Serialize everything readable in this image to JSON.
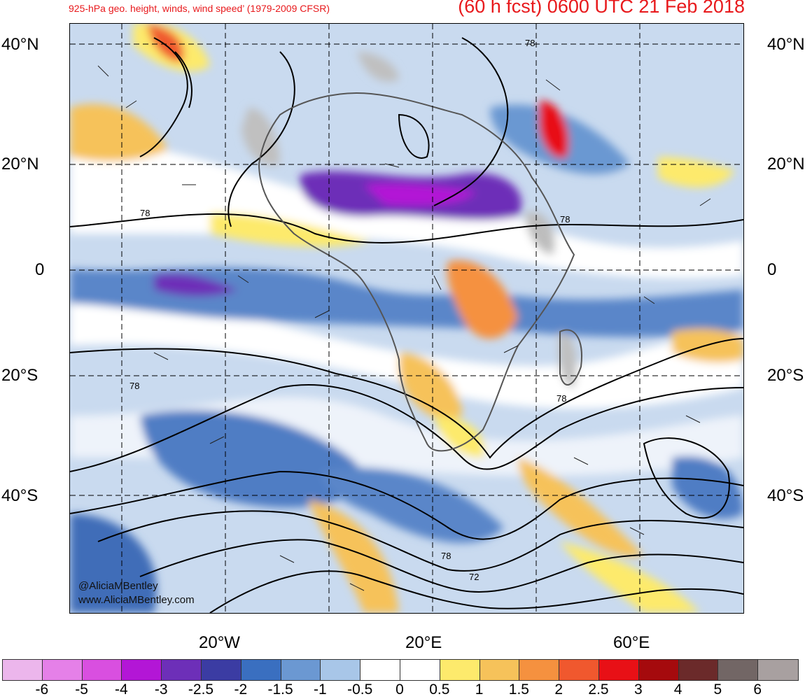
{
  "header": {
    "title_left": "925-hPa geo. height, winds, wind speed’ (1979-2009 CFSR)",
    "title_right": "(60 h fcst) 0600 UTC 21 Feb 2018"
  },
  "map": {
    "lat_labels": [
      "40°N",
      "20°N",
      "0",
      "20°S",
      "40°S"
    ],
    "lon_labels": [
      "20°W",
      "20°E",
      "60°E"
    ],
    "contour_labels": [
      "78",
      "78",
      "78",
      "78",
      "78",
      "78",
      "72"
    ],
    "credit_handle": "@AliciaMBentley",
    "credit_url": "www.AliciaMBentley.com"
  },
  "colorbar": {
    "ticks": [
      "-6",
      "-5",
      "-4",
      "-3",
      "-2.5",
      "-2",
      "-1.5",
      "-1",
      "-0.5",
      "0",
      "0.5",
      "1",
      "1.5",
      "2",
      "2.5",
      "3",
      "4",
      "5",
      "6"
    ],
    "colors": [
      "#ecb6ec",
      "#e580e8",
      "#d94fe0",
      "#b316d6",
      "#6d2fb8",
      "#3b3ca3",
      "#3a6fc0",
      "#6b98d2",
      "#a8c6e8",
      "#ffffff",
      "#ffffff",
      "#fdea6c",
      "#f6c25a",
      "#f5913f",
      "#f0582e",
      "#e81016",
      "#a50a0d",
      "#6b2a2a",
      "#726665",
      "#a8a0a0"
    ]
  }
}
